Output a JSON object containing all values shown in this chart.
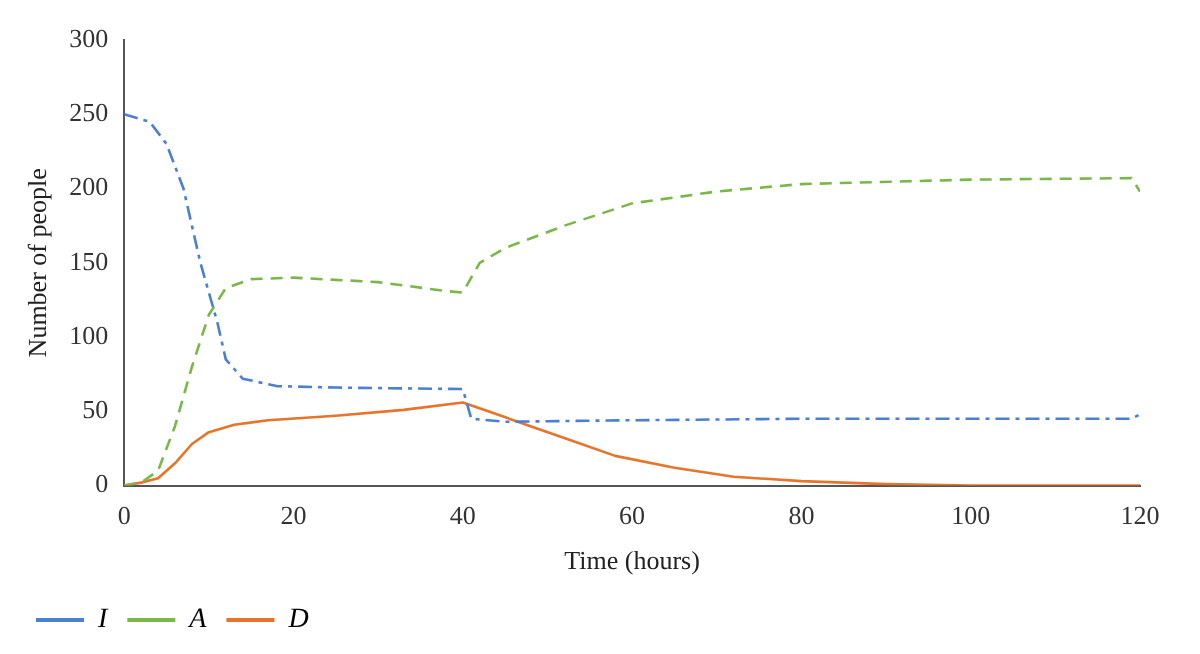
{
  "chart_data": {
    "type": "line",
    "xlabel": "Time (hours)",
    "ylabel": "Number of people",
    "xlim": [
      0,
      120
    ],
    "xticks": [
      0,
      20,
      40,
      60,
      80,
      100,
      120
    ],
    "ylim": [
      0,
      300
    ],
    "yticks": [
      0,
      50,
      100,
      150,
      200,
      250,
      300
    ],
    "grid": false,
    "legend": "bottom left",
    "marker": "none",
    "series": [
      {
        "name": "I",
        "color": "#4a7fd4",
        "line_style": "dashdot",
        "x": [
          0,
          3,
          5,
          7,
          9,
          11,
          12,
          14,
          18,
          25,
          40,
          41,
          45,
          60,
          80,
          119,
          120
        ],
        "values": [
          250,
          245,
          230,
          200,
          150,
          110,
          85,
          72,
          67,
          66,
          65,
          45,
          43,
          44,
          45,
          45,
          48
        ]
      },
      {
        "name": "A",
        "color": "#7ab648",
        "line_style": "dashed",
        "x": [
          0,
          2,
          4,
          6,
          8,
          10,
          12,
          15,
          20,
          30,
          38,
          40,
          42,
          45,
          52,
          60,
          70,
          80,
          100,
          119,
          120
        ],
        "values": [
          0,
          2,
          10,
          40,
          80,
          115,
          133,
          139,
          140,
          137,
          131,
          130,
          150,
          160,
          175,
          190,
          198,
          203,
          206,
          207,
          198
        ]
      },
      {
        "name": "D",
        "color": "#e8742a",
        "line_style": "solid",
        "x": [
          0,
          2,
          4,
          6,
          8,
          10,
          13,
          17,
          25,
          33,
          40,
          43,
          48,
          53,
          58,
          65,
          72,
          80,
          90,
          100,
          120
        ],
        "values": [
          0,
          2,
          5,
          15,
          28,
          36,
          41,
          44,
          47,
          51,
          56,
          50,
          40,
          30,
          20,
          12,
          6,
          3,
          1,
          0,
          0
        ]
      }
    ]
  }
}
